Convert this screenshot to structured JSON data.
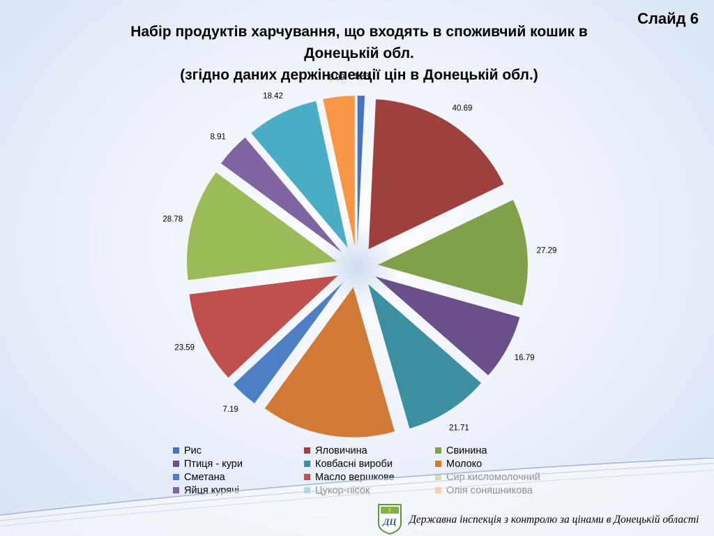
{
  "slide_label": "Слайд 6",
  "title_lines": [
    "Набір продуктів харчування, що входять в споживчий кошик в",
    "Донецькій обл.",
    "(згідно даних держінспекції цін в Донецькій обл.)"
  ],
  "footer": "Державна інспекція з контролю за цінами в Донецькій області",
  "chart_data": {
    "type": "pie",
    "style": "exploded",
    "data_labels": true,
    "legend_position": "bottom",
    "categories": [
      "Рис",
      "Яловичина",
      "Свинина",
      "Птиця - кури",
      "Ковбасні вироби",
      "Молоко",
      "Сметана",
      "Масло вершкове",
      "Сир кисломолочний",
      "Яйця курячі",
      "Цукор-пісок",
      "Олія соняшникова"
    ],
    "values": [
      1.83,
      40.69,
      27.29,
      16.79,
      21.71,
      34.47,
      7.19,
      23.59,
      28.78,
      8.91,
      18.42,
      8.09
    ],
    "colors": [
      "#4472c4",
      "#9e413e",
      "#80a04a",
      "#6b4f8a",
      "#3c8fa0",
      "#d07a35",
      "#4c7fc4",
      "#c0504d",
      "#9bbb59",
      "#8064a2",
      "#4bacc6",
      "#f79646"
    ]
  }
}
